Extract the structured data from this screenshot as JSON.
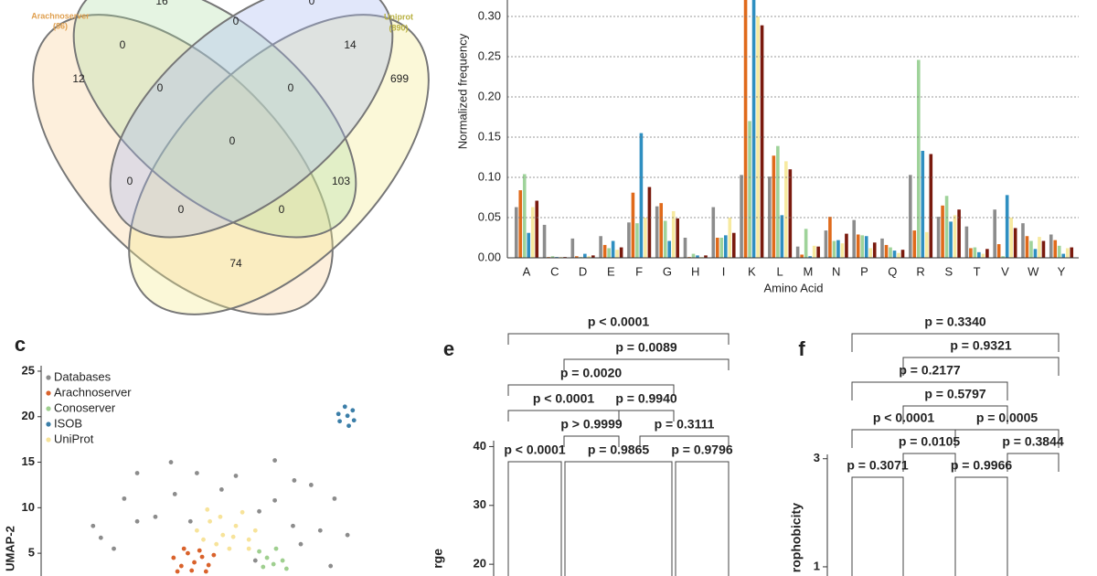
{
  "venn": {
    "sets": [
      {
        "name": "Arachnoserver",
        "count": "(86)"
      },
      {
        "name": "Uniprot",
        "count": "(890)"
      }
    ],
    "regions": [
      16,
      0,
      0,
      0,
      14,
      12,
      0,
      0,
      699,
      0,
      0,
      103,
      0,
      0,
      74
    ]
  },
  "chart_data": {
    "type": "bar",
    "xlabel": "Amino Acid",
    "ylabel": "Normalized frequency",
    "categories": [
      "A",
      "C",
      "D",
      "E",
      "F",
      "G",
      "H",
      "I",
      "K",
      "L",
      "M",
      "N",
      "P",
      "Q",
      "R",
      "S",
      "T",
      "V",
      "W",
      "Y"
    ],
    "series": [
      {
        "color": "#8c8c8c",
        "values": [
          0.063,
          0.041,
          0.024,
          0.027,
          0.044,
          0.064,
          0.025,
          0.063,
          0.103,
          0.101,
          0.014,
          0.034,
          0.047,
          0.024,
          0.103,
          0.051,
          0.039,
          0.06,
          0.043,
          0.029
        ]
      },
      {
        "color": "#e06a1b",
        "values": [
          0.084,
          0.001,
          0.002,
          0.016,
          0.081,
          0.068,
          0.001,
          0.025,
          0.34,
          0.127,
          0.004,
          0.051,
          0.029,
          0.016,
          0.034,
          0.065,
          0.012,
          0.017,
          0.027,
          0.022
        ]
      },
      {
        "color": "#9fd39a",
        "values": [
          0.104,
          0.002,
          0.001,
          0.012,
          0.043,
          0.046,
          0.005,
          0.025,
          0.17,
          0.139,
          0.036,
          0.021,
          0.028,
          0.013,
          0.246,
          0.077,
          0.013,
          0.002,
          0.021,
          0.015
        ]
      },
      {
        "color": "#2f8fc1",
        "values": [
          0.031,
          0.001,
          0.005,
          0.021,
          0.155,
          0.021,
          0.003,
          0.028,
          0.33,
          0.053,
          0.002,
          0.022,
          0.027,
          0.009,
          0.133,
          0.045,
          0.007,
          0.078,
          0.011,
          0.005
        ]
      },
      {
        "color": "#f7eaa0",
        "values": [
          0.063,
          0.001,
          0.002,
          0.01,
          0.05,
          0.058,
          0.001,
          0.05,
          0.3,
          0.12,
          0.015,
          0.018,
          0.012,
          0.006,
          0.032,
          0.053,
          0.005,
          0.05,
          0.026,
          0.012
        ]
      },
      {
        "color": "#7a1a0e",
        "values": [
          0.071,
          0.001,
          0.003,
          0.013,
          0.088,
          0.049,
          0.003,
          0.031,
          0.289,
          0.11,
          0.014,
          0.03,
          0.019,
          0.01,
          0.129,
          0.06,
          0.011,
          0.037,
          0.021,
          0.013
        ]
      }
    ],
    "ylim": [
      0,
      0.32
    ],
    "yticks": [
      {
        "value": 0,
        "label": "0.00"
      },
      {
        "value": 0.05,
        "label": "0.05"
      },
      {
        "value": 0.1,
        "label": "0.10"
      },
      {
        "value": 0.15,
        "label": "0.15"
      },
      {
        "value": 0.2,
        "label": "0.20"
      },
      {
        "value": 0.25,
        "label": "0.25"
      },
      {
        "value": 0.3,
        "label": "0.30"
      }
    ],
    "grid": true
  },
  "umap": {
    "type": "scatter",
    "letter": "c",
    "ylabel": "UMAP-2",
    "xlim": [
      -10,
      15
    ],
    "ylim": [
      2.5,
      25.6
    ],
    "yticks": [
      5,
      10,
      15,
      20,
      25
    ],
    "series": [
      {
        "name": "Databases",
        "color": "#8c8c8c",
        "x": [
          -2.6,
          0,
          2,
          5,
          8,
          9.5,
          -3.6,
          0.3,
          3.9,
          8,
          10.8,
          12.6,
          -2.6,
          -1.2,
          9.4,
          11.5,
          13.6,
          -6,
          -4.4,
          12.3,
          10,
          -5.4,
          6.8,
          1.5,
          6.5
        ],
        "y": [
          13.8,
          15,
          13.8,
          13.5,
          15.2,
          13,
          11,
          11.5,
          12,
          10.8,
          12.5,
          11,
          8.5,
          9,
          8,
          7.5,
          7,
          8,
          5.5,
          3.6,
          6,
          6.7,
          9.6,
          8.5,
          4.2
        ]
      },
      {
        "name": "Arachnoserver",
        "color": "#d9622b",
        "x": [
          0.2,
          0.8,
          1.3,
          1.8,
          2.4,
          2.9,
          1.0,
          2.2,
          3.3,
          0.5,
          1.6,
          2.7
        ],
        "y": [
          4.5,
          3.6,
          5.0,
          4.0,
          4.6,
          3.7,
          5.5,
          5.3,
          4.8,
          3.0,
          3.1,
          3.0
        ]
      },
      {
        "name": "Conoserver",
        "color": "#9fcf8f",
        "x": [
          6.8,
          7.4,
          8.1,
          8.6,
          7.1,
          8.9,
          7.9
        ],
        "y": [
          5.2,
          4.5,
          5.5,
          4.2,
          3.5,
          3.3,
          3.8
        ]
      },
      {
        "name": "ISOB",
        "color": "#3b7ea8",
        "x": [
          13.4,
          14.0,
          12.9,
          13.6,
          14.1,
          13.0,
          13.7
        ],
        "y": [
          21.1,
          20.7,
          20.3,
          20.1,
          19.6,
          19.5,
          19.0
        ]
      },
      {
        "name": "UniProt",
        "color": "#f7e39a",
        "x": [
          2,
          3,
          4,
          5,
          6,
          3.5,
          4.5,
          2.5,
          5.5,
          6.5,
          3.8,
          4.8,
          2.8,
          6
        ],
        "y": [
          7.5,
          8.5,
          7,
          8,
          6.5,
          6,
          5.5,
          6.5,
          9.5,
          7.5,
          9,
          6.8,
          9.8,
          5.5
        ]
      }
    ]
  },
  "panel_e": {
    "letter": "e",
    "ylabel": "rge",
    "ylim": [
      18,
      41
    ],
    "yticks": [
      20,
      30,
      40
    ],
    "comparisons": [
      "p < 0.0001",
      "p = 0.0089",
      "p = 0.0020",
      "p < 0.0001",
      "p = 0.9940",
      "p > 0.9999",
      "p = 0.3111",
      "p < 0.0001",
      "p = 0.9865",
      "p = 0.9796"
    ]
  },
  "panel_f": {
    "letter": "f",
    "ylabel": "rophobicity",
    "ylim": [
      0.83,
      3.08
    ],
    "yticks": [
      1,
      3
    ],
    "comparisons": [
      "p = 0.3340",
      "p = 0.9321",
      "p = 0.2177",
      "p = 0.5797",
      "p < 0.0001",
      "p = 0.0005",
      "p = 0.0105",
      "p = 0.3844",
      "p = 0.3071",
      "p = 0.9966"
    ]
  }
}
